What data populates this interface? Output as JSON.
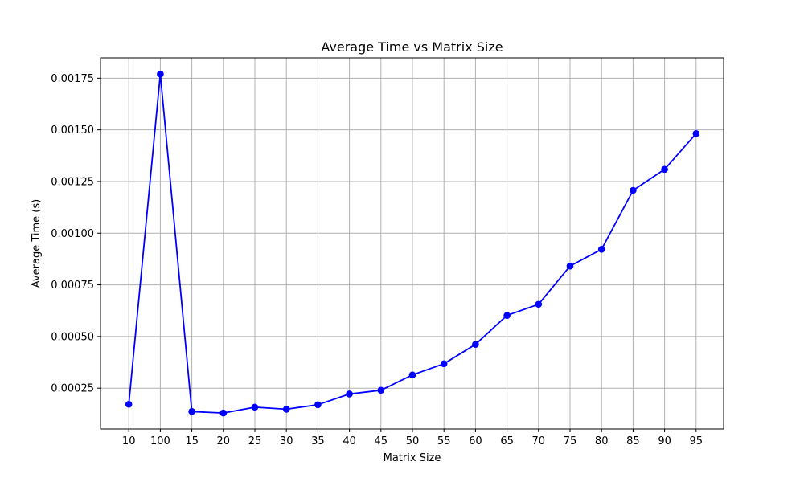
{
  "chart_data": {
    "type": "line",
    "title": "Average Time vs Matrix Size",
    "xlabel": "Matrix Size",
    "ylabel": "Average Time (s)",
    "categories": [
      "10",
      "100",
      "15",
      "20",
      "25",
      "30",
      "35",
      "40",
      "45",
      "50",
      "55",
      "60",
      "65",
      "70",
      "75",
      "80",
      "85",
      "90",
      "95"
    ],
    "series": [
      {
        "values": [
          0.000172,
          0.00177,
          0.000137,
          0.00013,
          0.000158,
          0.000148,
          0.00017,
          0.000222,
          0.00024,
          0.000314,
          0.000368,
          0.000462,
          0.000602,
          0.000656,
          0.000841,
          0.000922,
          0.001207,
          0.001309,
          0.001482
        ],
        "color": "#0000ff"
      }
    ],
    "yticks": [
      0.00025,
      0.0005,
      0.00075,
      0.001,
      0.00125,
      0.0015,
      0.00175
    ],
    "ytick_labels": [
      "0.00025",
      "0.00050",
      "0.00075",
      "0.00100",
      "0.00125",
      "0.00150",
      "0.00175"
    ],
    "ylim": [
      5.25e-05,
      0.0018485
    ],
    "grid": true,
    "marker": "circle"
  }
}
